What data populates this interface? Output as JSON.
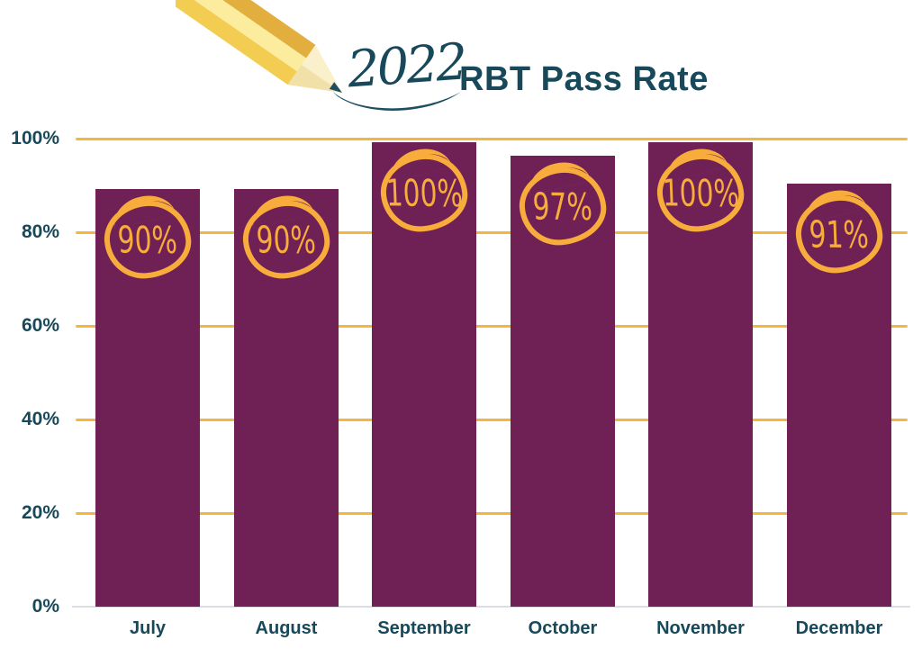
{
  "title": {
    "year": "2022",
    "text": "RBT Pass Rate"
  },
  "colors": {
    "bar_purple": "#6F2156",
    "accent_orange": "#F7AC3B",
    "gridline_orange": "#F5B63E",
    "title_teal": "#17495B",
    "baseline_gray": "#DDDDE4"
  },
  "chart_data": {
    "type": "bar",
    "title": "2022 RBT Pass Rate",
    "categories": [
      "July",
      "August",
      "September",
      "October",
      "November",
      "December"
    ],
    "values": [
      90,
      90,
      100,
      97,
      100,
      91
    ],
    "value_labels": [
      "90%",
      "90%",
      "100%",
      "97%",
      "100%",
      "91%"
    ],
    "xlabel": "",
    "ylabel": "",
    "ylim": [
      0,
      100
    ],
    "yticks": [
      0,
      20,
      40,
      60,
      80,
      100
    ],
    "ytick_labels": [
      "0%",
      "20%",
      "40%",
      "60%",
      "80%",
      "100%"
    ],
    "grid": "horizontal",
    "legend": "none",
    "bar_color": "#6F2156",
    "annotation_style": "hand-drawn orange circles around value labels"
  }
}
